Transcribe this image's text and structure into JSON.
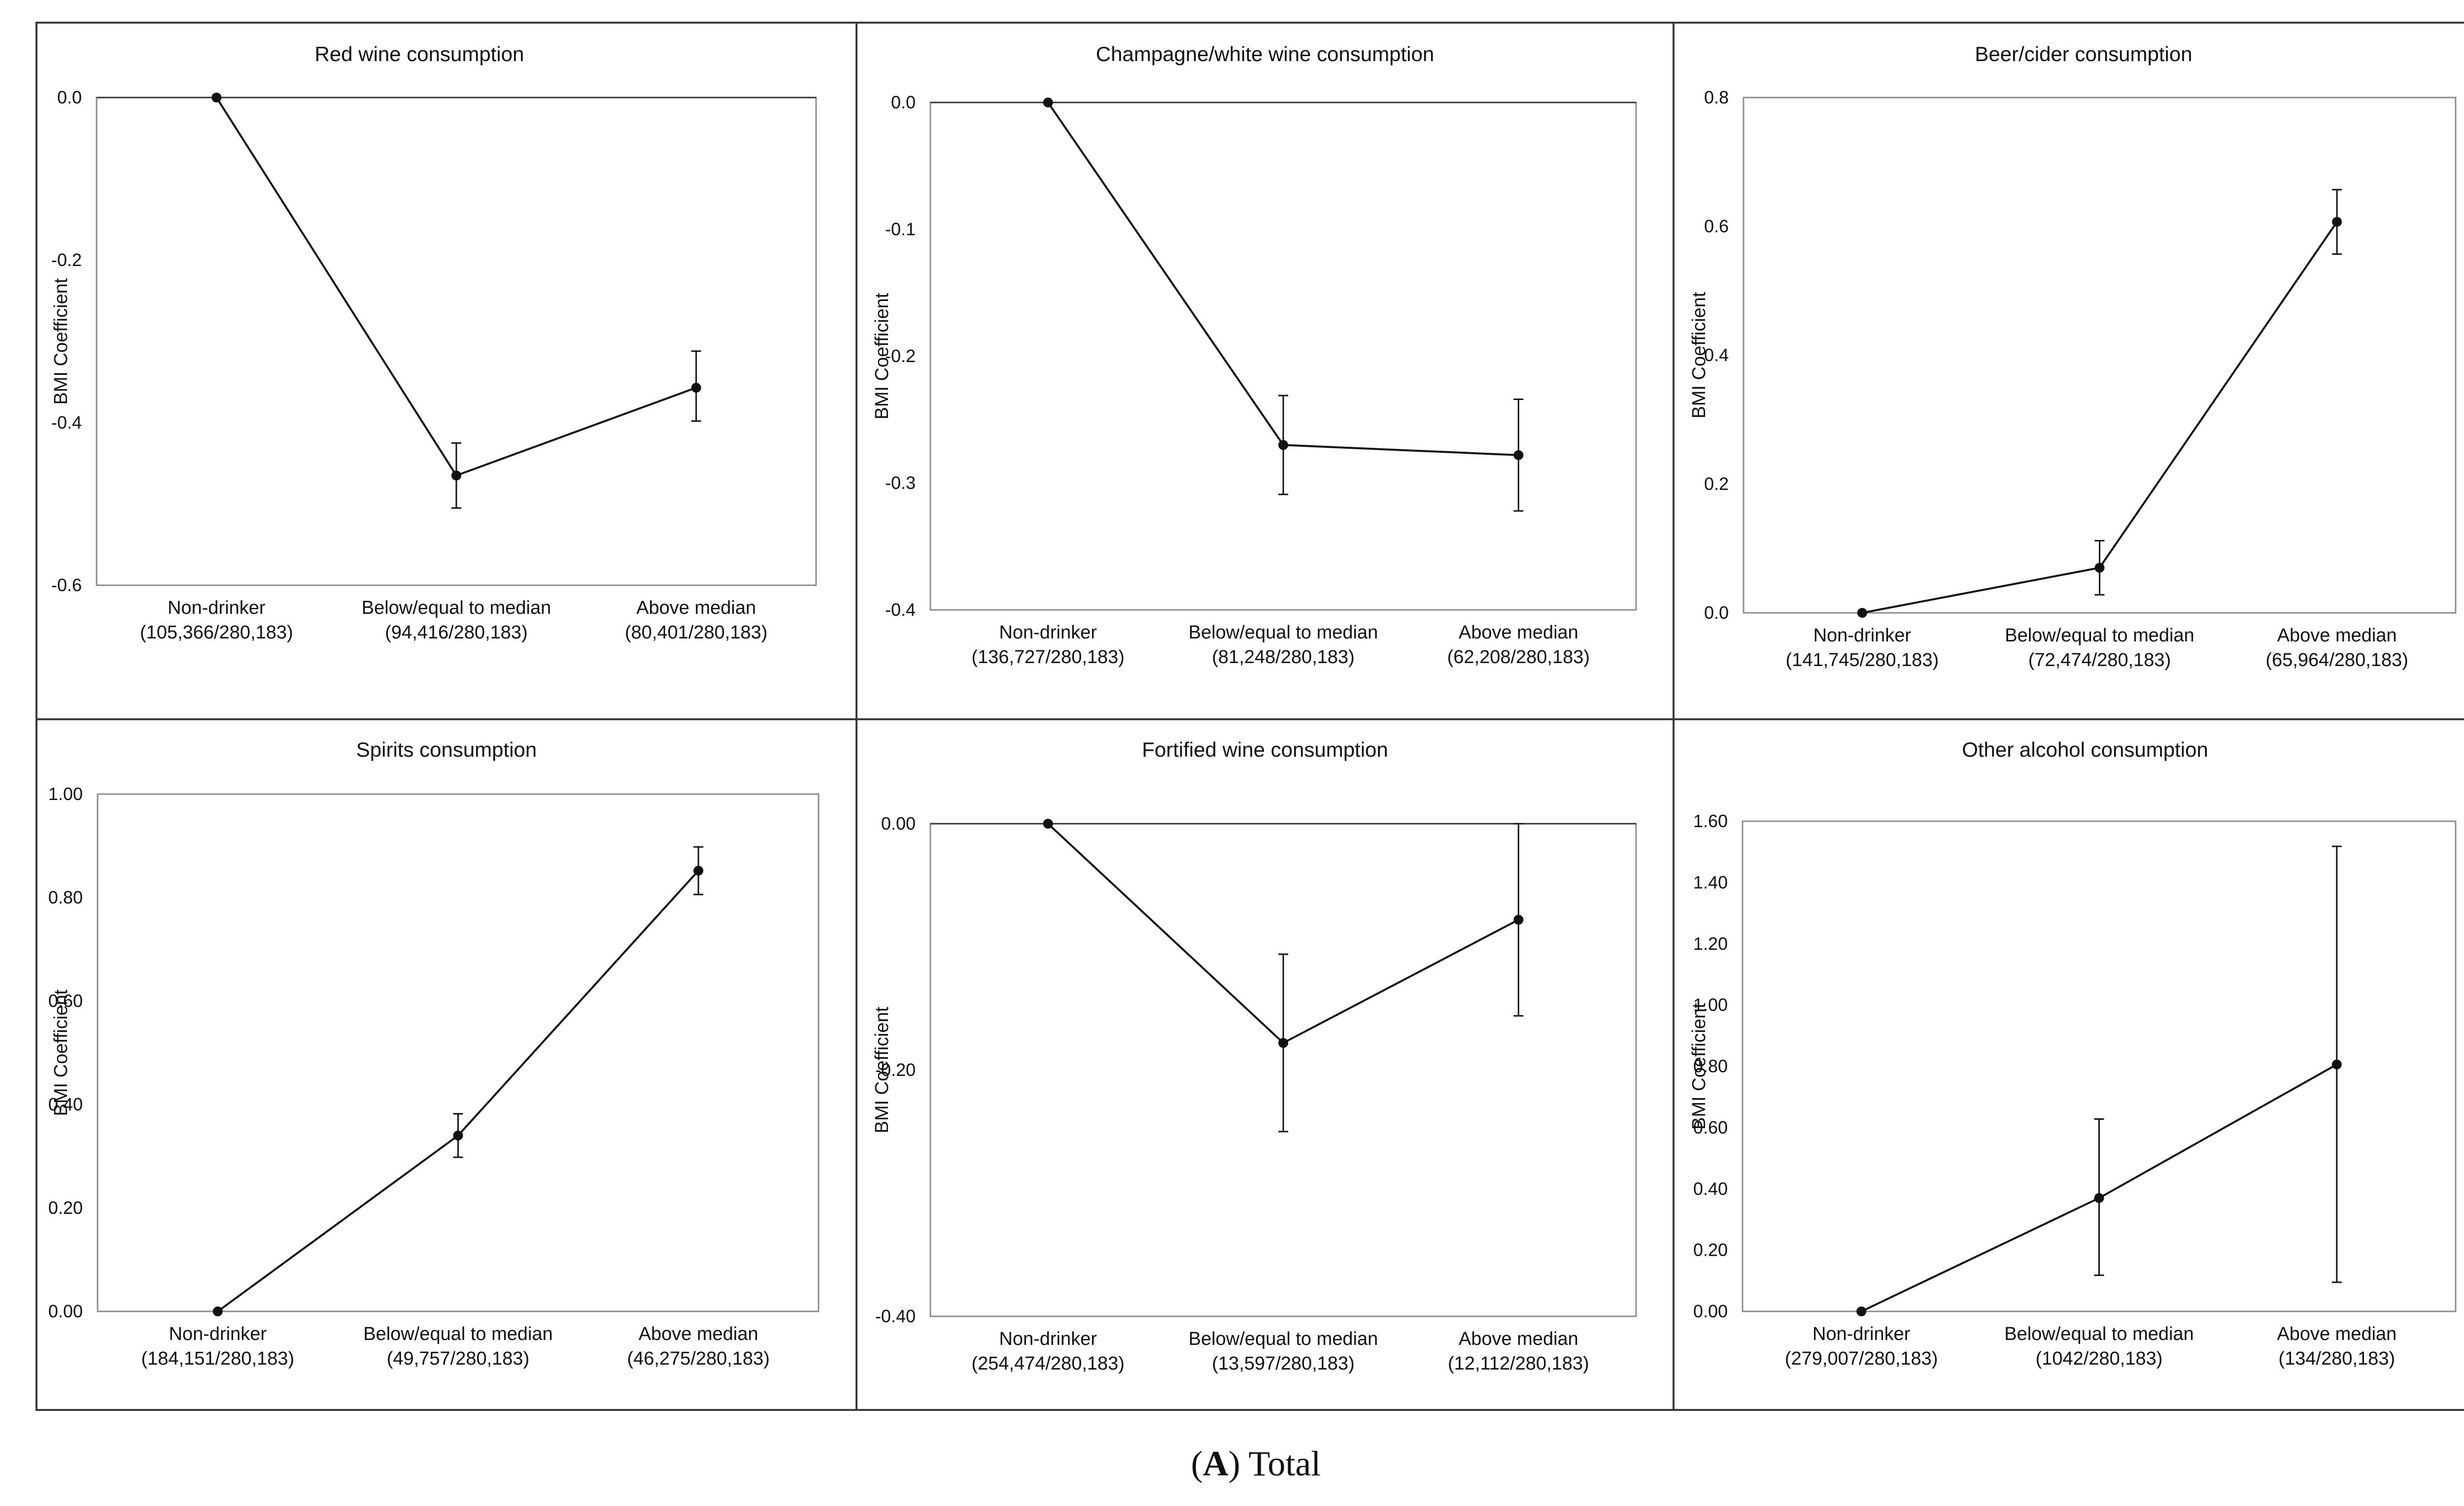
{
  "caption": {
    "letter": "A",
    "text": "Total"
  },
  "chart_data": [
    {
      "type": "line",
      "title": "Red wine consumption",
      "ylabel": "BMI Coefficient",
      "ylim": [
        -0.6,
        0.0
      ],
      "yticks": [
        0.0,
        -0.2,
        -0.4,
        -0.6
      ],
      "ytick_labels": [
        "0.0",
        "-0.2",
        "-0.4",
        "-0.6"
      ],
      "categories": [
        [
          "Non-drinker",
          "(105,366/280,183)"
        ],
        [
          "Below/equal to median",
          "(94,416/280,183)"
        ],
        [
          "Above median",
          "(80,401/280,183)"
        ]
      ],
      "values": [
        0.0,
        -0.465,
        -0.357
      ],
      "err_low": [
        0.0,
        -0.505,
        -0.398
      ],
      "err_high": [
        0.0,
        -0.425,
        -0.312
      ]
    },
    {
      "type": "line",
      "title": "Champagne/white wine consumption",
      "ylabel": "BMI Coefficient",
      "ylim": [
        -0.4,
        0.0
      ],
      "yticks": [
        0.0,
        -0.1,
        -0.2,
        -0.3,
        -0.4
      ],
      "ytick_labels": [
        "0.0",
        "-0.1",
        "-0.2",
        "-0.3",
        "-0.4"
      ],
      "categories": [
        [
          "Non-drinker",
          "(136,727/280,183)"
        ],
        [
          "Below/equal to median",
          "(81,248/280,183)"
        ],
        [
          "Above median",
          "(62,208/280,183)"
        ]
      ],
      "values": [
        0.0,
        -0.27,
        -0.278
      ],
      "err_low": [
        0.0,
        -0.309,
        -0.322
      ],
      "err_high": [
        0.0,
        -0.231,
        -0.234
      ]
    },
    {
      "type": "line",
      "title": "Beer/cider consumption",
      "ylabel": "BMI Coefficient",
      "ylim": [
        0.0,
        0.8
      ],
      "yticks": [
        0.8,
        0.6,
        0.4,
        0.2,
        0.0
      ],
      "ytick_labels": [
        "0.8",
        "0.6",
        "0.4",
        "0.2",
        "0.0"
      ],
      "categories": [
        [
          "Non-drinker",
          "(141,745/280,183)"
        ],
        [
          "Below/equal to median",
          "(72,474/280,183)"
        ],
        [
          "Above median",
          "(65,964/280,183)"
        ]
      ],
      "values": [
        0.0,
        0.07,
        0.607
      ],
      "err_low": [
        0.0,
        0.028,
        0.557
      ],
      "err_high": [
        0.0,
        0.112,
        0.657
      ]
    },
    {
      "type": "line",
      "title": "Spirits consumption",
      "ylabel": "BMI Coefficient",
      "ylim": [
        0.0,
        1.0
      ],
      "yticks": [
        1.0,
        0.8,
        0.6,
        0.4,
        0.2,
        0.0
      ],
      "ytick_labels": [
        "1.00",
        "0.80",
        "0.60",
        "0.40",
        "0.20",
        "0.00"
      ],
      "categories": [
        [
          "Non-drinker",
          "(184,151/280,183)"
        ],
        [
          "Below/equal to median",
          "(49,757/280,183)"
        ],
        [
          "Above median",
          "(46,275/280,183)"
        ]
      ],
      "values": [
        0.0,
        0.34,
        0.852
      ],
      "err_low": [
        0.0,
        0.298,
        0.806
      ],
      "err_high": [
        0.0,
        0.382,
        0.898
      ]
    },
    {
      "type": "line",
      "title": "Fortified wine consumption",
      "ylabel": "BMI Coefficient",
      "ylim": [
        -0.4,
        0.0
      ],
      "yticks": [
        0.0,
        -0.2,
        -0.4
      ],
      "ytick_labels": [
        "0.00",
        "-0.20",
        "-0.40"
      ],
      "categories": [
        [
          "Non-drinker",
          "(254,474/280,183)"
        ],
        [
          "Below/equal to median",
          "(13,597/280,183)"
        ],
        [
          "Above median",
          "(12,112/280,183)"
        ]
      ],
      "values": [
        0.0,
        -0.178,
        -0.078
      ],
      "err_low": [
        0.0,
        -0.25,
        -0.156
      ],
      "err_high": [
        0.0,
        -0.106,
        0.0
      ]
    },
    {
      "type": "line",
      "title": "Other alcohol consumption",
      "ylabel": "BMI Coefficient",
      "ylim": [
        0.0,
        1.6
      ],
      "yticks": [
        1.6,
        1.4,
        1.2,
        1.0,
        0.8,
        0.6,
        0.4,
        0.2,
        0.0
      ],
      "ytick_labels": [
        "1.60",
        "1.40",
        "1.20",
        "1.00",
        "0.80",
        "0.60",
        "0.40",
        "0.20",
        "0.00"
      ],
      "categories": [
        [
          "Non-drinker",
          "(279,007/280,183)"
        ],
        [
          "Below/equal to median",
          "(1042/280,183)"
        ],
        [
          "Above median",
          "(134/280,183)"
        ]
      ],
      "values": [
        0.0,
        0.37,
        0.806
      ],
      "err_low": [
        0.0,
        0.118,
        0.095
      ],
      "err_high": [
        0.0,
        0.628,
        1.518
      ]
    }
  ]
}
